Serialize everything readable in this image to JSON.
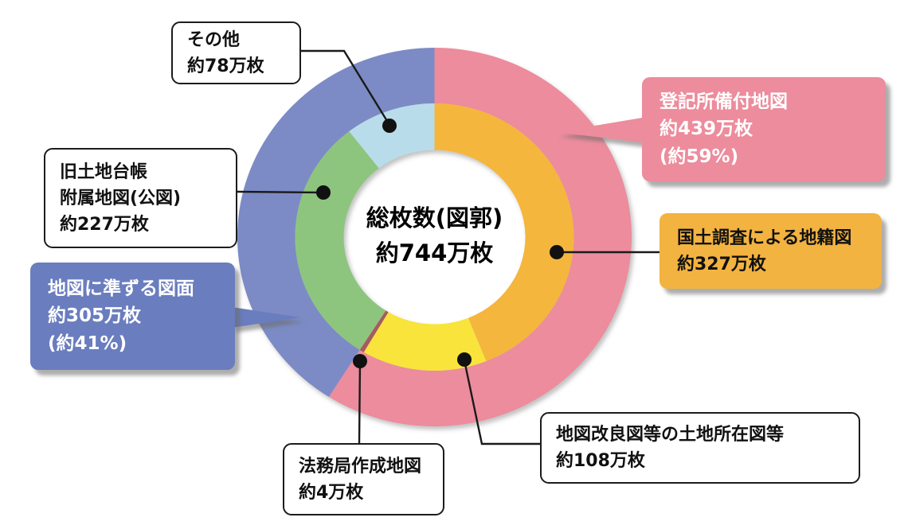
{
  "chart_data": {
    "type": "pie",
    "subtype": "double-ring-donut",
    "title": "総枚数(図郭) 約744万枚",
    "center_title": "総枚数(図郭)",
    "center_value": "約744万枚",
    "total_value": 744,
    "unit": "万枚",
    "legend_position": "callout-labels",
    "series": [
      {
        "name": "outer",
        "segments": [
          {
            "label": "登記所備付地図",
            "value": 439,
            "pct_label": "約59%",
            "color": "#ec8c9c"
          },
          {
            "label": "地図に準ずる図面",
            "value": 305,
            "pct_label": "約41%",
            "color": "#7b8bc5"
          }
        ]
      },
      {
        "name": "inner",
        "segments": [
          {
            "label": "国土調査による地籍図",
            "value": 327,
            "color": "#f5b63e"
          },
          {
            "label": "地図改良図等の土地所在図等",
            "value": 108,
            "color": "#f8e43a"
          },
          {
            "label": "法務局作成地図",
            "value": 4,
            "color": "#a85a5e"
          },
          {
            "label": "旧土地台帳附属地図(公図)",
            "value": 227,
            "color": "#8dc57e"
          },
          {
            "label": "その他",
            "value": 78,
            "color": "#b9dcea"
          }
        ]
      }
    ]
  },
  "center": {
    "line1": "総枚数(図郭)",
    "line2": "約744万枚"
  },
  "callouts": {
    "others": {
      "line1": "その他",
      "line2": "約78万枚"
    },
    "old_land_register": {
      "line1": "旧土地台帳",
      "line2": "附属地図(公図)",
      "line3": "約227万枚"
    },
    "quasi_map_drawings": {
      "line1": "地図に準ずる図面",
      "line2": "約305万枚",
      "line3": "(約41%)"
    },
    "legal_affairs_maps": {
      "line1": "法務局作成地図",
      "line2": "約4万枚"
    },
    "land_location_maps": {
      "line1": "地図改良図等の土地所在図等",
      "line2": "約108万枚"
    },
    "cadastral_maps": {
      "line1": "国土調査による地籍図",
      "line2": "約327万枚"
    },
    "registry_office_maps": {
      "line1": "登記所備付地図",
      "line2": "約439万枚",
      "line3": "(約59%)"
    }
  },
  "colors": {
    "registry_pink": "#ec8c9c",
    "quasi_blue_ring": "#7b8bc5",
    "quasi_blue_box": "#6a7dbe",
    "cadastral_orange": "#f3b340",
    "land_location_yellow": "#f8e43a",
    "legal_affairs_darkred": "#a85a5e",
    "old_land_green": "#8dc57e",
    "others_lightblue": "#b9dcea",
    "callout_line_black": "#1a1a1a"
  }
}
